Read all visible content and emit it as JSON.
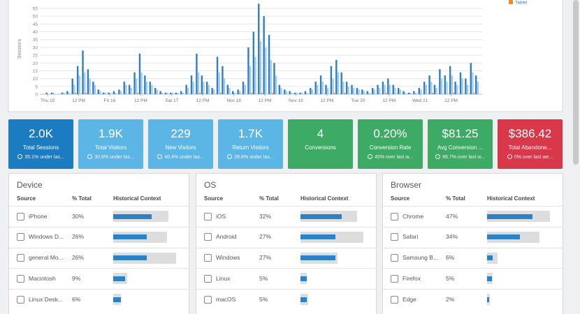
{
  "chart_data": {
    "type": "bar",
    "y_label": "Sessions",
    "x": [
      0,
      2,
      4,
      6,
      8,
      10,
      12,
      14,
      16,
      18,
      20,
      22,
      24,
      26,
      28,
      30,
      32,
      34,
      36,
      38,
      40,
      42,
      44,
      46,
      48,
      50,
      52,
      54,
      56,
      58,
      60,
      62,
      64,
      66,
      68,
      70,
      72,
      74,
      76,
      78,
      80,
      82,
      84,
      86,
      88,
      90,
      92,
      94,
      96,
      98,
      100,
      102,
      104,
      106,
      108,
      110,
      112,
      114,
      116,
      118,
      120,
      122,
      124,
      126,
      128,
      130,
      132,
      134,
      136,
      138,
      140,
      142,
      144,
      146,
      148,
      150,
      152,
      154,
      156,
      158,
      160,
      162,
      164,
      166
    ],
    "xlim": [
      -3,
      168
    ],
    "xticks": [
      {
        "value": 0,
        "label": "Thu 15"
      },
      {
        "value": 12,
        "label": "12 PM"
      },
      {
        "value": 24,
        "label": "Fri 16"
      },
      {
        "value": 36,
        "label": "12 PM"
      },
      {
        "value": 48,
        "label": "Sat 17"
      },
      {
        "value": 60,
        "label": "12 PM"
      },
      {
        "value": 72,
        "label": "Nov 18"
      },
      {
        "value": 84,
        "label": "12 PM"
      },
      {
        "value": 96,
        "label": "Nov 19"
      },
      {
        "value": 108,
        "label": "12 PM"
      },
      {
        "value": 120,
        "label": "Tue 20"
      },
      {
        "value": 132,
        "label": "12 PM"
      },
      {
        "value": 144,
        "label": "Wed 21"
      },
      {
        "value": 156,
        "label": "12 PM"
      }
    ],
    "ylim": [
      0,
      60
    ],
    "yticks": [
      0,
      5,
      10,
      15,
      20,
      25,
      30,
      35,
      40,
      45,
      50,
      55
    ],
    "grid": true,
    "series": [
      {
        "color": "#2f7fc1",
        "values": [
          1,
          1,
          0,
          1,
          2,
          10,
          18,
          28,
          16,
          8,
          3,
          1,
          1,
          2,
          3,
          8,
          6,
          14,
          26,
          12,
          8,
          4,
          2,
          1,
          1,
          1,
          2,
          6,
          12,
          26,
          12,
          8,
          4,
          24,
          18,
          6,
          2,
          3,
          8,
          30,
          40,
          58,
          50,
          38,
          20,
          6,
          3,
          2,
          1,
          1,
          2,
          4,
          8,
          12,
          6,
          18,
          22,
          14,
          8,
          6,
          4,
          3,
          2,
          4,
          6,
          8,
          10,
          6,
          4,
          2,
          1,
          2,
          4,
          8,
          12,
          6,
          16,
          12,
          18,
          8,
          14,
          10,
          20,
          12
        ]
      },
      {
        "color": "#9fc8ea",
        "values": [
          0,
          1,
          0,
          1,
          1,
          6,
          12,
          14,
          10,
          6,
          2,
          1,
          1,
          1,
          2,
          6,
          4,
          10,
          14,
          8,
          6,
          3,
          1,
          1,
          1,
          1,
          1,
          4,
          8,
          14,
          8,
          6,
          3,
          14,
          10,
          4,
          1,
          2,
          6,
          18,
          24,
          34,
          30,
          22,
          12,
          4,
          2,
          1,
          1,
          1,
          1,
          3,
          6,
          8,
          4,
          10,
          14,
          8,
          5,
          4,
          3,
          2,
          1,
          3,
          4,
          6,
          6,
          4,
          3,
          1,
          1,
          1,
          3,
          6,
          8,
          4,
          10,
          8,
          12,
          6,
          10,
          6,
          14,
          8
        ]
      },
      {
        "name": "Tablet",
        "color": "#f08a24",
        "values": [
          0,
          0,
          0,
          0,
          0,
          1,
          0,
          1,
          0,
          0,
          0,
          0,
          0,
          0,
          0,
          0,
          0,
          1,
          0,
          0,
          0,
          0,
          0,
          0,
          0,
          0,
          0,
          0,
          0,
          1,
          0,
          0,
          0,
          1,
          0,
          0,
          0,
          0,
          0,
          1,
          0,
          1,
          0,
          1,
          0,
          0,
          0,
          0,
          0,
          0,
          0,
          0,
          0,
          0,
          0,
          1,
          0,
          1,
          0,
          0,
          0,
          0,
          0,
          0,
          0,
          1,
          0,
          0,
          0,
          0,
          0,
          0,
          0,
          0,
          1,
          0,
          0,
          0,
          1,
          0,
          0,
          0,
          1,
          0
        ]
      }
    ]
  },
  "tiles": [
    {
      "value": "2.0K",
      "label": "Total Sessions",
      "sub": "35.1% under las...",
      "color": "#1b7cc1"
    },
    {
      "value": "1.9K",
      "label": "Total Visitors",
      "sub": "30.6% under las...",
      "color": "#5bb6e6"
    },
    {
      "value": "229",
      "label": "New Visitors",
      "sub": "40.4% under las...",
      "color": "#5bb6e6"
    },
    {
      "value": "1.7K",
      "label": "Return Visitors",
      "sub": "28.8% under las...",
      "color": "#5bb6e6"
    },
    {
      "value": "4",
      "label": "Conversions",
      "color": "#3daa66"
    },
    {
      "value": "0.20%",
      "label": "Conversion Rate",
      "sub": "45% over last w...",
      "color": "#3daa66"
    },
    {
      "value": "$81.25",
      "label": "Avg Conversion ...",
      "sub": "86.7% over last w...",
      "color": "#3daa66"
    },
    {
      "value": "$386.42",
      "label": "Total Abandone...",
      "sub": "0% over last we...",
      "color": "#d9374a"
    }
  ],
  "panels": [
    {
      "title": "Device",
      "columns": [
        "Source",
        "% Total",
        "Historical Context"
      ],
      "rows": [
        {
          "source": "iPhone",
          "pct": "30%",
          "current": 30,
          "historical": 43
        },
        {
          "source": "Windows D...",
          "pct": "26%",
          "current": 26,
          "historical": 42
        },
        {
          "source": "general Mo...",
          "pct": "26%",
          "current": 26,
          "historical": 49
        },
        {
          "source": "Macintosh",
          "pct": "9%",
          "current": 9,
          "historical": 11
        },
        {
          "source": "Linux Desk...",
          "pct": "6%",
          "current": 6,
          "historical": 6
        }
      ]
    },
    {
      "title": "OS",
      "columns": [
        "Source",
        "% Total",
        "Historical Context"
      ],
      "rows": [
        {
          "source": "iOS",
          "pct": "32%",
          "current": 32,
          "historical": 44
        },
        {
          "source": "Android",
          "pct": "27%",
          "current": 27,
          "historical": 49
        },
        {
          "source": "Windows",
          "pct": "27%",
          "current": 27,
          "historical": 29
        },
        {
          "source": "Linux",
          "pct": "5%",
          "current": 5,
          "historical": 5
        },
        {
          "source": "macOS",
          "pct": "5%",
          "current": 5,
          "historical": 6
        }
      ]
    },
    {
      "title": "Browser",
      "columns": [
        "Source",
        "% Total",
        "Historical Context"
      ],
      "rows": [
        {
          "source": "Chrome",
          "pct": "47%",
          "current": 47,
          "historical": 65
        },
        {
          "source": "Safari",
          "pct": "34%",
          "current": 34,
          "historical": 54
        },
        {
          "source": "Samsung B...",
          "pct": "6%",
          "current": 6,
          "historical": 11
        },
        {
          "source": "Firefox",
          "pct": "5%",
          "current": 5,
          "historical": 6
        },
        {
          "source": "Edge",
          "pct": "2%",
          "current": 2,
          "historical": 3
        }
      ]
    }
  ]
}
